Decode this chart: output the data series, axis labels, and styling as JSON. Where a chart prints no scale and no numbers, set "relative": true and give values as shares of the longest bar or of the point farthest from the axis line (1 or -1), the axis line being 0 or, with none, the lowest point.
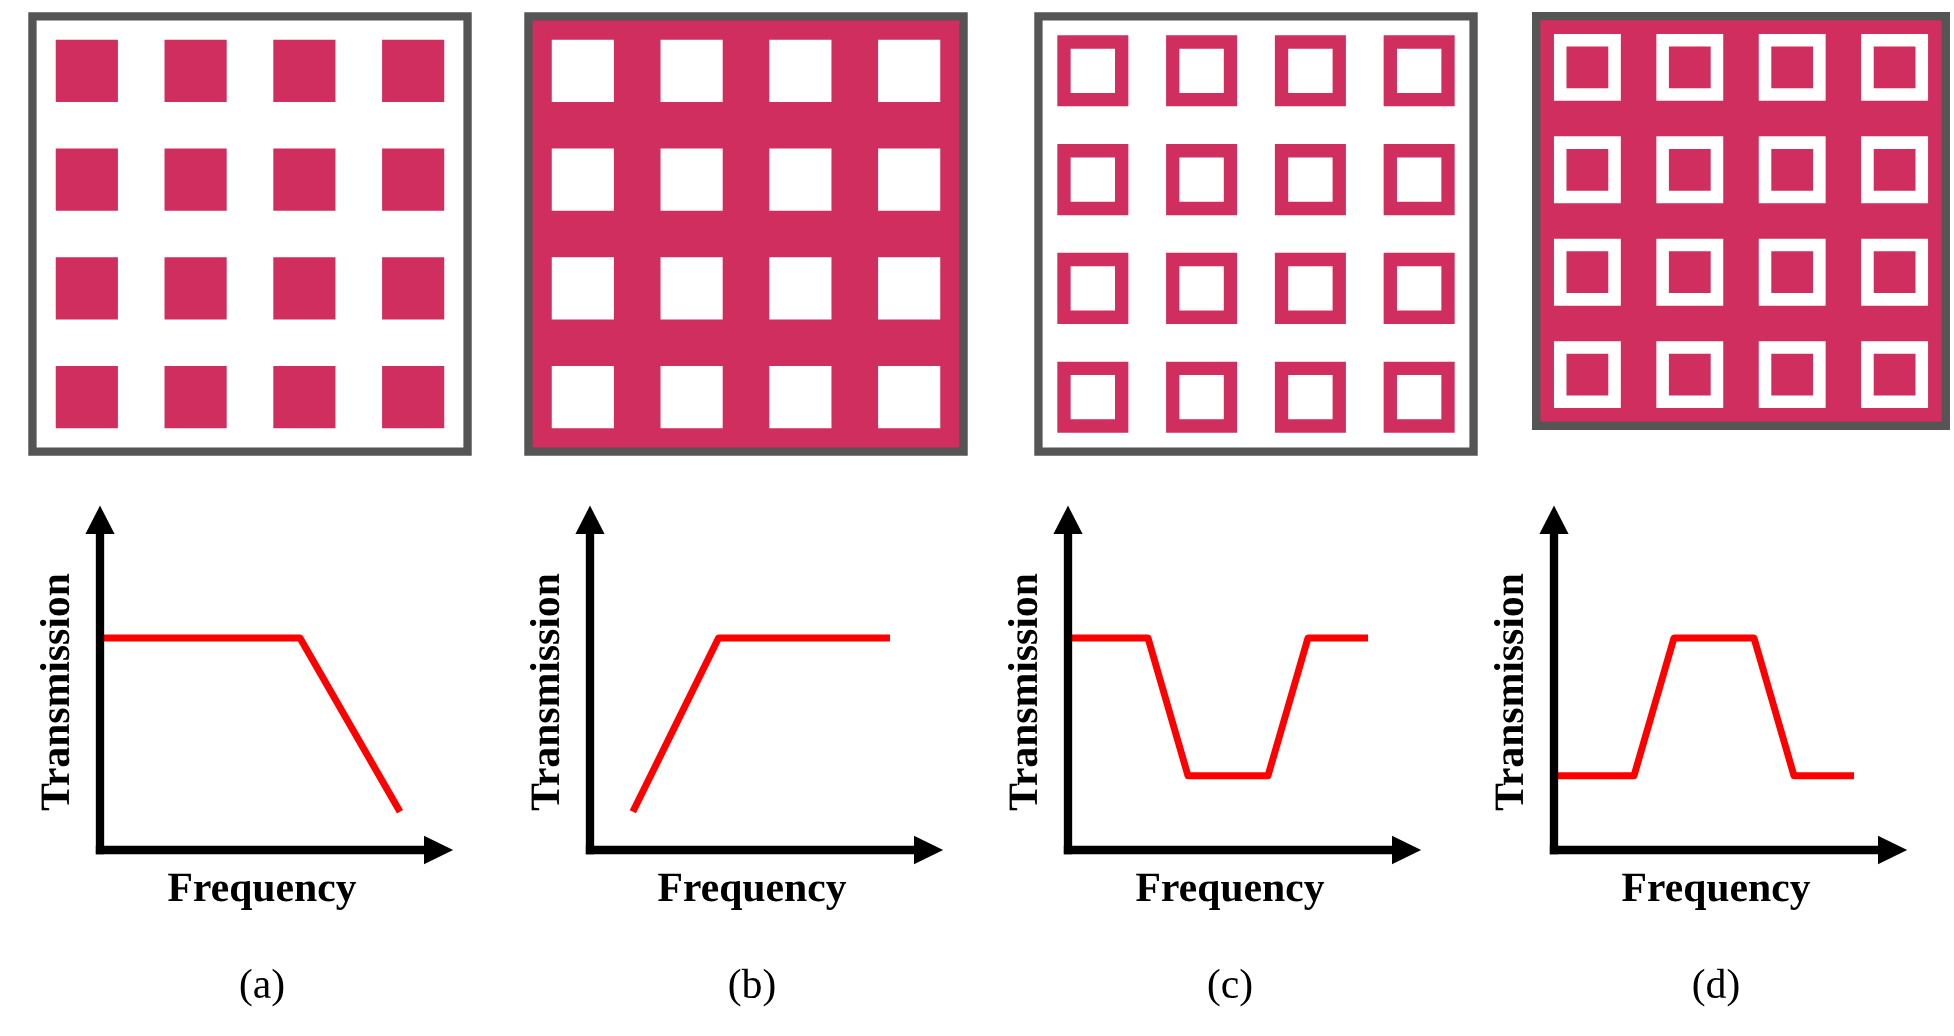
{
  "chart_data": [
    {
      "type": "line",
      "title": "(a)",
      "xlabel": "Frequency",
      "ylabel": "Transmission",
      "relative": true,
      "tick_labels": false,
      "categories": [
        null,
        null,
        null,
        null
      ],
      "series": [
        {
          "color": "#ff0000",
          "values": [
            1,
            1,
            1,
            0.18
          ]
        }
      ]
    },
    {
      "type": "line",
      "title": "(b)",
      "xlabel": "Frequency",
      "ylabel": "Transmission",
      "relative": true,
      "tick_labels": false,
      "categories": [
        null,
        null,
        null,
        null,
        null,
        null,
        null,
        null
      ],
      "series": [
        {
          "color": "#ff0000",
          "values": [
            null,
            0.18,
            0.59,
            1,
            1,
            1,
            1,
            1
          ]
        }
      ]
    },
    {
      "type": "line",
      "title": "(c)",
      "xlabel": "Frequency",
      "ylabel": "Transmission",
      "relative": true,
      "tick_labels": false,
      "categories": [
        null,
        null,
        null,
        null,
        null,
        null,
        null,
        null,
        null,
        null,
        null,
        null,
        null,
        null,
        null,
        null
      ],
      "series": [
        {
          "color": "#ff0000",
          "values": [
            1,
            1,
            1,
            1,
            1,
            0.675,
            0.35,
            0.35,
            0.35,
            0.35,
            0.35,
            0.675,
            1,
            1,
            1,
            1
          ]
        }
      ]
    },
    {
      "type": "line",
      "title": "(d)",
      "xlabel": "Frequency",
      "ylabel": "Transmission",
      "relative": true,
      "tick_labels": false,
      "categories": [
        null,
        null,
        null,
        null,
        null,
        null,
        null,
        null,
        null,
        null,
        null,
        null,
        null,
        null,
        null,
        null
      ],
      "series": [
        {
          "color": "#ff0000",
          "values": [
            0.35,
            0.35,
            0.35,
            0.35,
            0.35,
            0.675,
            1,
            1,
            1,
            1,
            1,
            0.675,
            0.35,
            0.35,
            0.35,
            0.35
          ]
        }
      ]
    }
  ]
}
